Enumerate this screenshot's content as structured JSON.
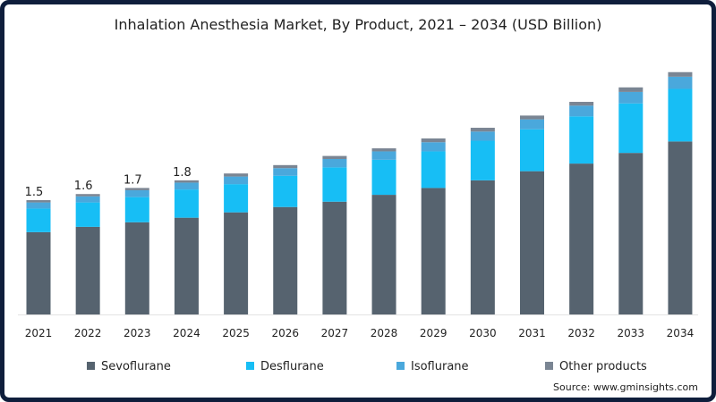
{
  "chart_data": {
    "type": "bar",
    "stacked": true,
    "title": "Inhalation Anesthesia Market, By Product, 2021 – 2034 (USD Billion)",
    "xlabel": "",
    "ylabel": "",
    "ylim": [
      0,
      3.3
    ],
    "grid": false,
    "legend_position": "bottom",
    "categories": [
      "2021",
      "2022",
      "2023",
      "2024",
      "2025",
      "2026",
      "2027",
      "2028",
      "2029",
      "2030",
      "2031",
      "2032",
      "2033",
      "2034"
    ],
    "series": [
      {
        "name": "Sevoflurane",
        "color": "#56636f",
        "values": [
          1.08,
          1.15,
          1.21,
          1.27,
          1.34,
          1.41,
          1.48,
          1.57,
          1.66,
          1.76,
          1.88,
          1.98,
          2.12,
          2.27
        ]
      },
      {
        "name": "Desflurane",
        "color": "#17bef5",
        "values": [
          0.31,
          0.32,
          0.33,
          0.37,
          0.37,
          0.41,
          0.45,
          0.46,
          0.48,
          0.52,
          0.55,
          0.62,
          0.65,
          0.69
        ]
      },
      {
        "name": "Isoflurane",
        "color": "#4aa8dc",
        "values": [
          0.08,
          0.08,
          0.09,
          0.09,
          0.1,
          0.1,
          0.11,
          0.11,
          0.12,
          0.12,
          0.13,
          0.14,
          0.15,
          0.16
        ]
      },
      {
        "name": "Other products",
        "color": "#7a8593",
        "values": [
          0.03,
          0.03,
          0.03,
          0.03,
          0.04,
          0.04,
          0.04,
          0.04,
          0.05,
          0.05,
          0.05,
          0.05,
          0.06,
          0.06
        ]
      }
    ],
    "total_labels": [
      "1.5",
      "1.6",
      "1.7",
      "1.8"
    ],
    "source": "Source: www.gminsights.com"
  }
}
